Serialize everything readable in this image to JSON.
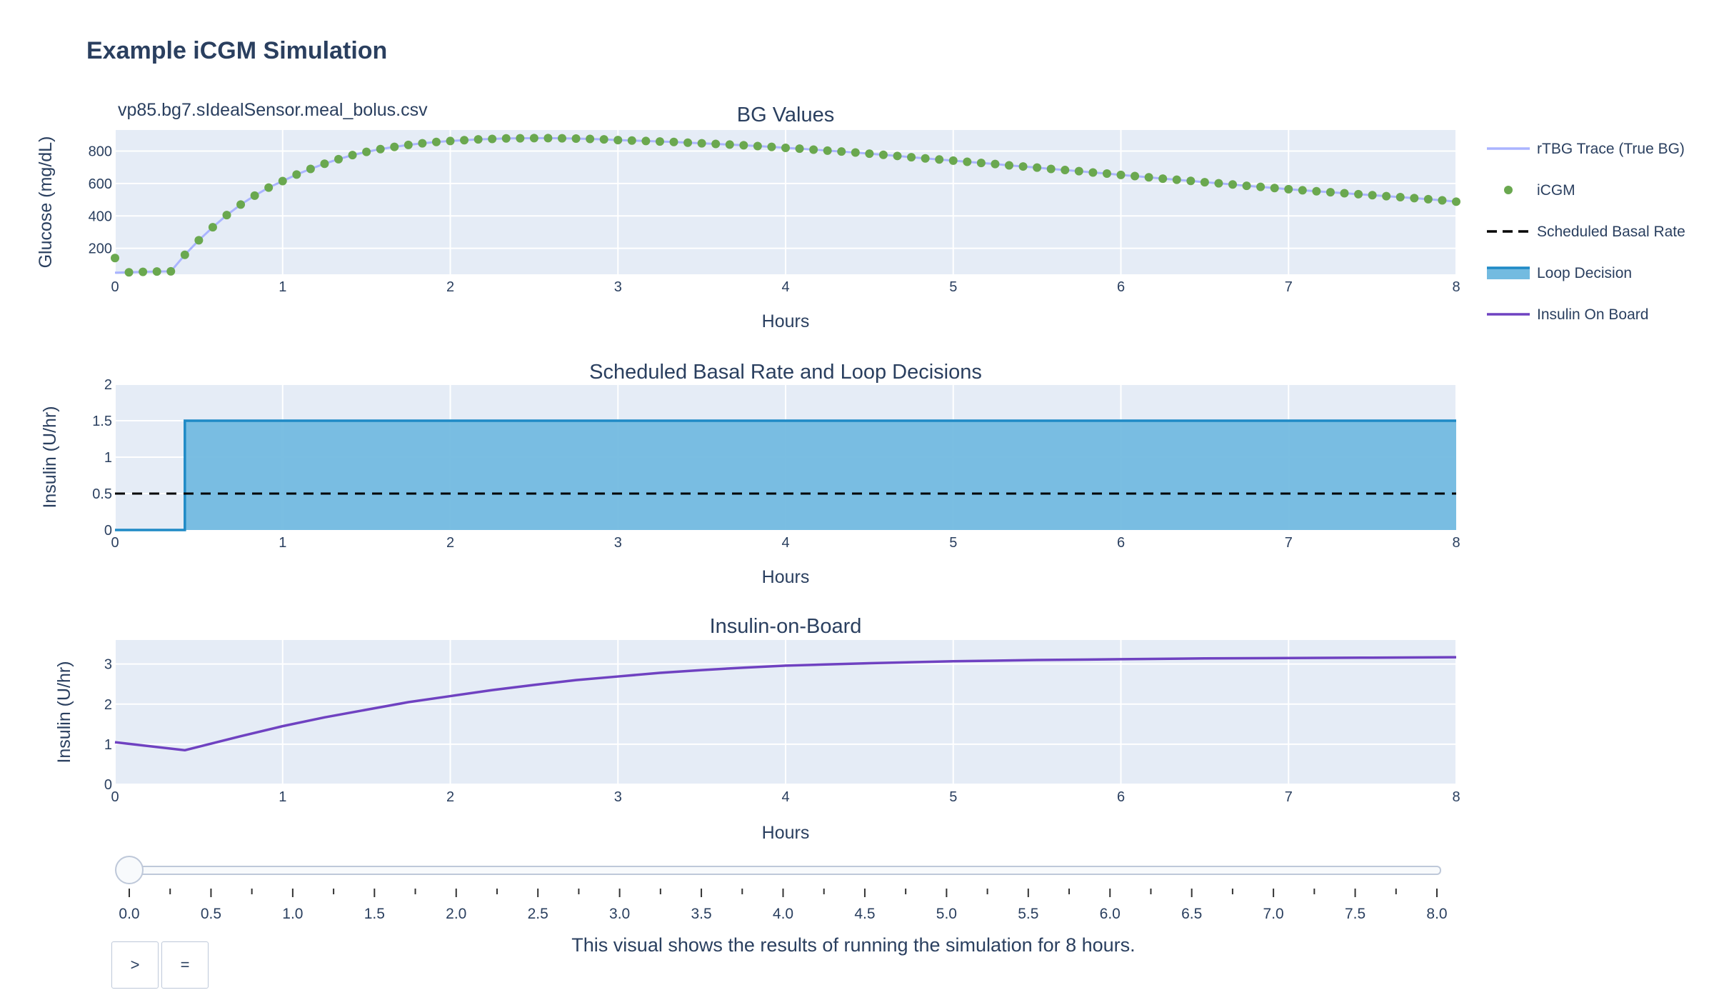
{
  "page": {
    "title": "Example iCGM Simulation",
    "caption": "This visual shows the results of running the simulation for 8 hours.",
    "play_label": ">",
    "pause_label": "="
  },
  "colors": {
    "plot_bg": "#E5ECF6",
    "grid": "#ffffff",
    "text": "#2a3f5f",
    "rtbg": "#aab4ff",
    "icgm": "#6aa84f",
    "basal": "#000000",
    "loop_line": "#1f8ac6",
    "loop_fill": "#73bbe0",
    "iob": "#6f42c1"
  },
  "slider": {
    "value": 0,
    "min": 0,
    "max": 8,
    "tick_labels": [
      "0.0",
      "0.5",
      "1.0",
      "1.5",
      "2.0",
      "2.5",
      "3.0",
      "3.5",
      "4.0",
      "4.5",
      "5.0",
      "5.5",
      "6.0",
      "6.5",
      "7.0",
      "7.5",
      "8.0"
    ]
  },
  "chart_data": [
    {
      "type": "line",
      "title": "BG Values",
      "annotation": "vp85.bg7.sIdealSensor.meal_bolus.csv",
      "xlabel": "Hours",
      "ylabel": "Glucose (mg/dL)",
      "xlim": [
        0,
        8
      ],
      "ylim": [
        40,
        930
      ],
      "xticks": [
        0,
        1,
        2,
        3,
        4,
        5,
        6,
        7,
        8
      ],
      "yticks": [
        200,
        400,
        600,
        800
      ],
      "grid": true,
      "legend_position": "right",
      "series": [
        {
          "name": "rTBG Trace (True BG)",
          "mode": "line",
          "x": [
            0,
            0.0833,
            0.1667,
            0.25,
            0.3333,
            0.4167,
            0.5,
            0.5833,
            0.6667,
            0.75,
            0.8333,
            0.9167,
            1,
            1.0833,
            1.1667,
            1.25,
            1.3333,
            1.4167,
            1.5,
            1.5833,
            1.6667,
            1.75,
            1.8333,
            1.9167,
            2,
            2.0833,
            2.1667,
            2.25,
            2.3333,
            2.4167,
            2.5,
            2.5833,
            2.6667,
            2.75,
            2.8333,
            2.9167,
            3,
            3.0833,
            3.1667,
            3.25,
            3.3333,
            3.4167,
            3.5,
            3.5833,
            3.6667,
            3.75,
            3.8333,
            3.9167,
            4,
            4.0833,
            4.1667,
            4.25,
            4.3333,
            4.4167,
            4.5,
            4.5833,
            4.6667,
            4.75,
            4.8333,
            4.9167,
            5,
            5.0833,
            5.1667,
            5.25,
            5.3333,
            5.4167,
            5.5,
            5.5833,
            5.6667,
            5.75,
            5.8333,
            5.9167,
            6,
            6.0833,
            6.1667,
            6.25,
            6.3333,
            6.4167,
            6.5,
            6.5833,
            6.6667,
            6.75,
            6.8333,
            6.9167,
            7,
            7.0833,
            7.1667,
            7.25,
            7.3333,
            7.4167,
            7.5,
            7.5833,
            7.6667,
            7.75,
            7.8333,
            7.9167,
            8
          ],
          "y": [
            50,
            52,
            55,
            57,
            58,
            160,
            250,
            330,
            405,
            470,
            525,
            575,
            615,
            655,
            690,
            722,
            750,
            775,
            795,
            812,
            826,
            838,
            848,
            856,
            862,
            867,
            872,
            875,
            878,
            879,
            880,
            880,
            879,
            877,
            875,
            872,
            868,
            865,
            862,
            859,
            856,
            852,
            848,
            844,
            840,
            836,
            831,
            826,
            820,
            815,
            809,
            803,
            797,
            791,
            784,
            777,
            770,
            762,
            755,
            748,
            741,
            734,
            727,
            720,
            712,
            705,
            698,
            690,
            683,
            676,
            668,
            661,
            653,
            646,
            638,
            630,
            623,
            616,
            608,
            601,
            594,
            586,
            579,
            572,
            565,
            558,
            552,
            546,
            540,
            534,
            528,
            522,
            516,
            510,
            503,
            496,
            488
          ]
        },
        {
          "name": " iCGM",
          "mode": "markers",
          "x": [
            0,
            0.0833,
            0.1667,
            0.25,
            0.3333,
            0.4167,
            0.5,
            0.5833,
            0.6667,
            0.75,
            0.8333,
            0.9167,
            1,
            1.0833,
            1.1667,
            1.25,
            1.3333,
            1.4167,
            1.5,
            1.5833,
            1.6667,
            1.75,
            1.8333,
            1.9167,
            2,
            2.0833,
            2.1667,
            2.25,
            2.3333,
            2.4167,
            2.5,
            2.5833,
            2.6667,
            2.75,
            2.8333,
            2.9167,
            3,
            3.0833,
            3.1667,
            3.25,
            3.3333,
            3.4167,
            3.5,
            3.5833,
            3.6667,
            3.75,
            3.8333,
            3.9167,
            4,
            4.0833,
            4.1667,
            4.25,
            4.3333,
            4.4167,
            4.5,
            4.5833,
            4.6667,
            4.75,
            4.8333,
            4.9167,
            5,
            5.0833,
            5.1667,
            5.25,
            5.3333,
            5.4167,
            5.5,
            5.5833,
            5.6667,
            5.75,
            5.8333,
            5.9167,
            6,
            6.0833,
            6.1667,
            6.25,
            6.3333,
            6.4167,
            6.5,
            6.5833,
            6.6667,
            6.75,
            6.8333,
            6.9167,
            7,
            7.0833,
            7.1667,
            7.25,
            7.3333,
            7.4167,
            7.5,
            7.5833,
            7.6667,
            7.75,
            7.8333,
            7.9167,
            8
          ],
          "y": [
            140,
            52,
            55,
            57,
            58,
            160,
            250,
            330,
            405,
            470,
            525,
            575,
            615,
            655,
            690,
            722,
            750,
            775,
            795,
            812,
            826,
            838,
            848,
            856,
            862,
            867,
            872,
            875,
            878,
            879,
            880,
            880,
            879,
            877,
            875,
            872,
            868,
            865,
            862,
            859,
            856,
            852,
            848,
            844,
            840,
            836,
            831,
            826,
            820,
            815,
            809,
            803,
            797,
            791,
            784,
            777,
            770,
            762,
            755,
            748,
            741,
            734,
            727,
            720,
            712,
            705,
            698,
            690,
            683,
            676,
            668,
            661,
            653,
            646,
            638,
            630,
            623,
            616,
            608,
            601,
            594,
            586,
            579,
            572,
            565,
            558,
            552,
            546,
            540,
            534,
            528,
            522,
            516,
            510,
            503,
            496,
            488
          ]
        }
      ]
    },
    {
      "type": "area",
      "title": "Scheduled Basal Rate and Loop Decisions",
      "xlabel": "Hours",
      "ylabel": "Insulin (U/hr)",
      "xlim": [
        0,
        8
      ],
      "ylim": [
        0,
        2
      ],
      "xticks": [
        0,
        1,
        2,
        3,
        4,
        5,
        6,
        7,
        8
      ],
      "yticks": [
        0,
        0.5,
        1,
        1.5,
        2
      ],
      "grid": true,
      "series": [
        {
          "name": "Scheduled Basal Rate",
          "mode": "dash",
          "x": [
            0,
            8
          ],
          "y": [
            0.5,
            0.5
          ]
        },
        {
          "name": "Loop Decision",
          "mode": "step-fill",
          "x": [
            0,
            0.4167,
            0.4167,
            8
          ],
          "y": [
            0,
            0,
            1.5,
            1.5
          ]
        }
      ]
    },
    {
      "type": "line",
      "title": "Insulin-on-Board",
      "xlabel": "Hours",
      "ylabel": "Insulin (U/hr)",
      "xlim": [
        0,
        8
      ],
      "ylim": [
        0,
        3.6
      ],
      "xticks": [
        0,
        1,
        2,
        3,
        4,
        5,
        6,
        7,
        8
      ],
      "yticks": [
        0,
        1,
        2,
        3
      ],
      "grid": true,
      "series": [
        {
          "name": "Insulin On Board",
          "mode": "line",
          "x": [
            0,
            0.4167,
            0.75,
            1,
            1.25,
            1.5,
            1.75,
            2,
            2.25,
            2.5,
            2.75,
            3,
            3.25,
            3.5,
            3.75,
            4,
            4.5,
            5,
            5.5,
            6,
            6.5,
            7,
            7.5,
            8
          ],
          "y": [
            1.05,
            0.85,
            1.2,
            1.45,
            1.67,
            1.86,
            2.05,
            2.2,
            2.35,
            2.48,
            2.6,
            2.69,
            2.78,
            2.85,
            2.91,
            2.96,
            3.02,
            3.07,
            3.1,
            3.12,
            3.14,
            3.15,
            3.16,
            3.17
          ]
        }
      ]
    }
  ]
}
